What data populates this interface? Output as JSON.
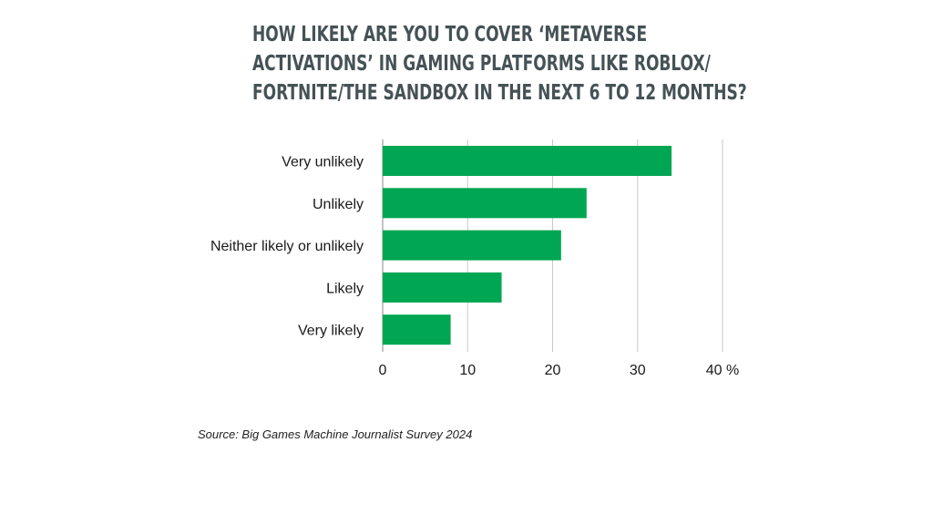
{
  "chart_data": {
    "type": "bar",
    "orientation": "horizontal",
    "title_lines": [
      "HOW LIKELY ARE YOU TO COVER ‘METAVERSE",
      "ACTIVATIONS’ IN GAMING PLATFORMS LIKE ROBLOX/",
      "FORTNITE/THE SANDBOX IN THE NEXT 6 TO 12 MONTHS?"
    ],
    "categories": [
      "Very unlikely",
      "Unlikely",
      "Neither likely or unlikely",
      "Likely",
      "Very likely"
    ],
    "values": [
      34,
      24,
      21,
      14,
      8
    ],
    "xlim": [
      0,
      40
    ],
    "x_ticks": [
      "0",
      "10",
      "20",
      "30",
      "40"
    ],
    "x_unit": "%",
    "grid": true,
    "bar_color": "#00a651"
  },
  "source": "Source: Big Games Machine Journalist Survey 2024"
}
